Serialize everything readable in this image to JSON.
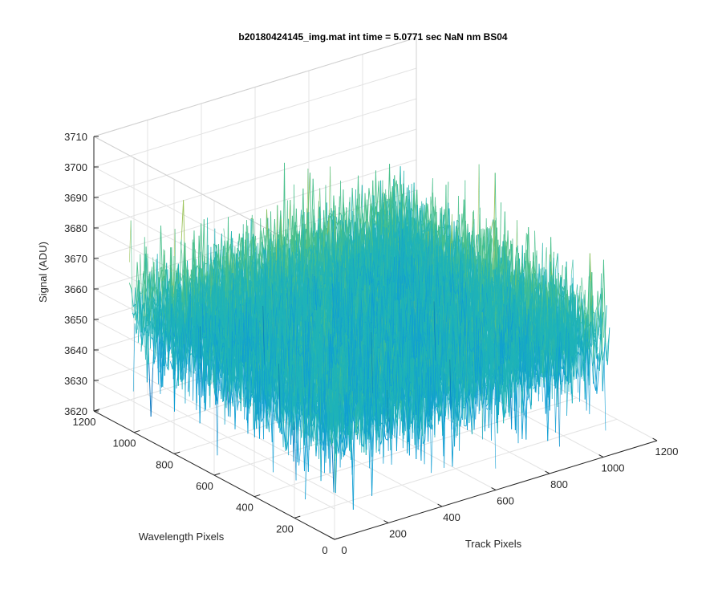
{
  "chart_data": {
    "type": "surface",
    "title": "b20180424145_img.mat int time = 5.0771 sec  NaN nm BS04",
    "xlabel": "Track Pixels",
    "ylabel": "Wavelength Pixels",
    "zlabel": "Signal (ADU)",
    "xlim": [
      0,
      1200
    ],
    "ylim": [
      0,
      1200
    ],
    "zlim": [
      3620,
      3710
    ],
    "x_ticks": [
      "0",
      "200",
      "400",
      "600",
      "800",
      "1000",
      "1200"
    ],
    "y_ticks": [
      "0",
      "200",
      "400",
      "600",
      "800",
      "1000",
      "1200"
    ],
    "z_ticks": [
      "3620",
      "3630",
      "3640",
      "3650",
      "3660",
      "3670",
      "3680",
      "3690",
      "3700",
      "3710"
    ],
    "data_extent": {
      "x": [
        1,
        1024
      ],
      "y": [
        1,
        1024
      ]
    },
    "signal_mean": 3659,
    "signal_range": [
      3627,
      3700
    ],
    "grid": true,
    "colormap": [
      "#0072bd",
      "#0f9ed3",
      "#1fb3b8",
      "#49c08b",
      "#9cc35a",
      "#e9b93a"
    ]
  }
}
